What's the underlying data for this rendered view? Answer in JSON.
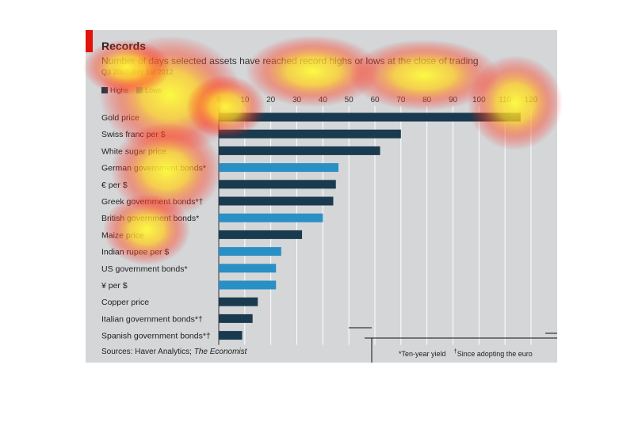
{
  "chart_data": {
    "type": "bar",
    "orientation": "horizontal",
    "title": "Records",
    "subtitle": "Number of days selected assets have reached record highs or lows at the close of trading",
    "period": "Q3 2007-July 1st 2012",
    "legend": [
      {
        "name": "Highs",
        "color": "#1a3b4f"
      },
      {
        "name": "Lows",
        "color": "#2a8fc4"
      }
    ],
    "xlim": [
      0,
      120
    ],
    "ticks": [
      "0",
      "10",
      "20",
      "30",
      "40",
      "50",
      "60",
      "70",
      "80",
      "90",
      "100",
      "110",
      "120"
    ],
    "grid": true,
    "categories": [
      "Gold price",
      "Swiss franc per $",
      "White sugar price",
      "German government bonds*",
      "€ per $",
      "Greek government bonds*†",
      "British government bonds*",
      "Maize price",
      "Indian rupee per $",
      "US government bonds*",
      "¥ per $",
      "Copper price",
      "Italian government bonds*†",
      "Spanish government bonds*†"
    ],
    "values": [
      116,
      70,
      62,
      46,
      45,
      44,
      40,
      32,
      24,
      22,
      22,
      15,
      13,
      9
    ],
    "bar_type": [
      "high",
      "high",
      "high",
      "low",
      "high",
      "high",
      "low",
      "high",
      "low",
      "low",
      "low",
      "high",
      "high",
      "high"
    ]
  },
  "source_prefix": "Sources: Haver Analytics; ",
  "source_italic": "The Economist",
  "footnote_1": "*Ten-year yield",
  "footnote_2_mark": "†",
  "footnote_2": "Since adopting the euro"
}
